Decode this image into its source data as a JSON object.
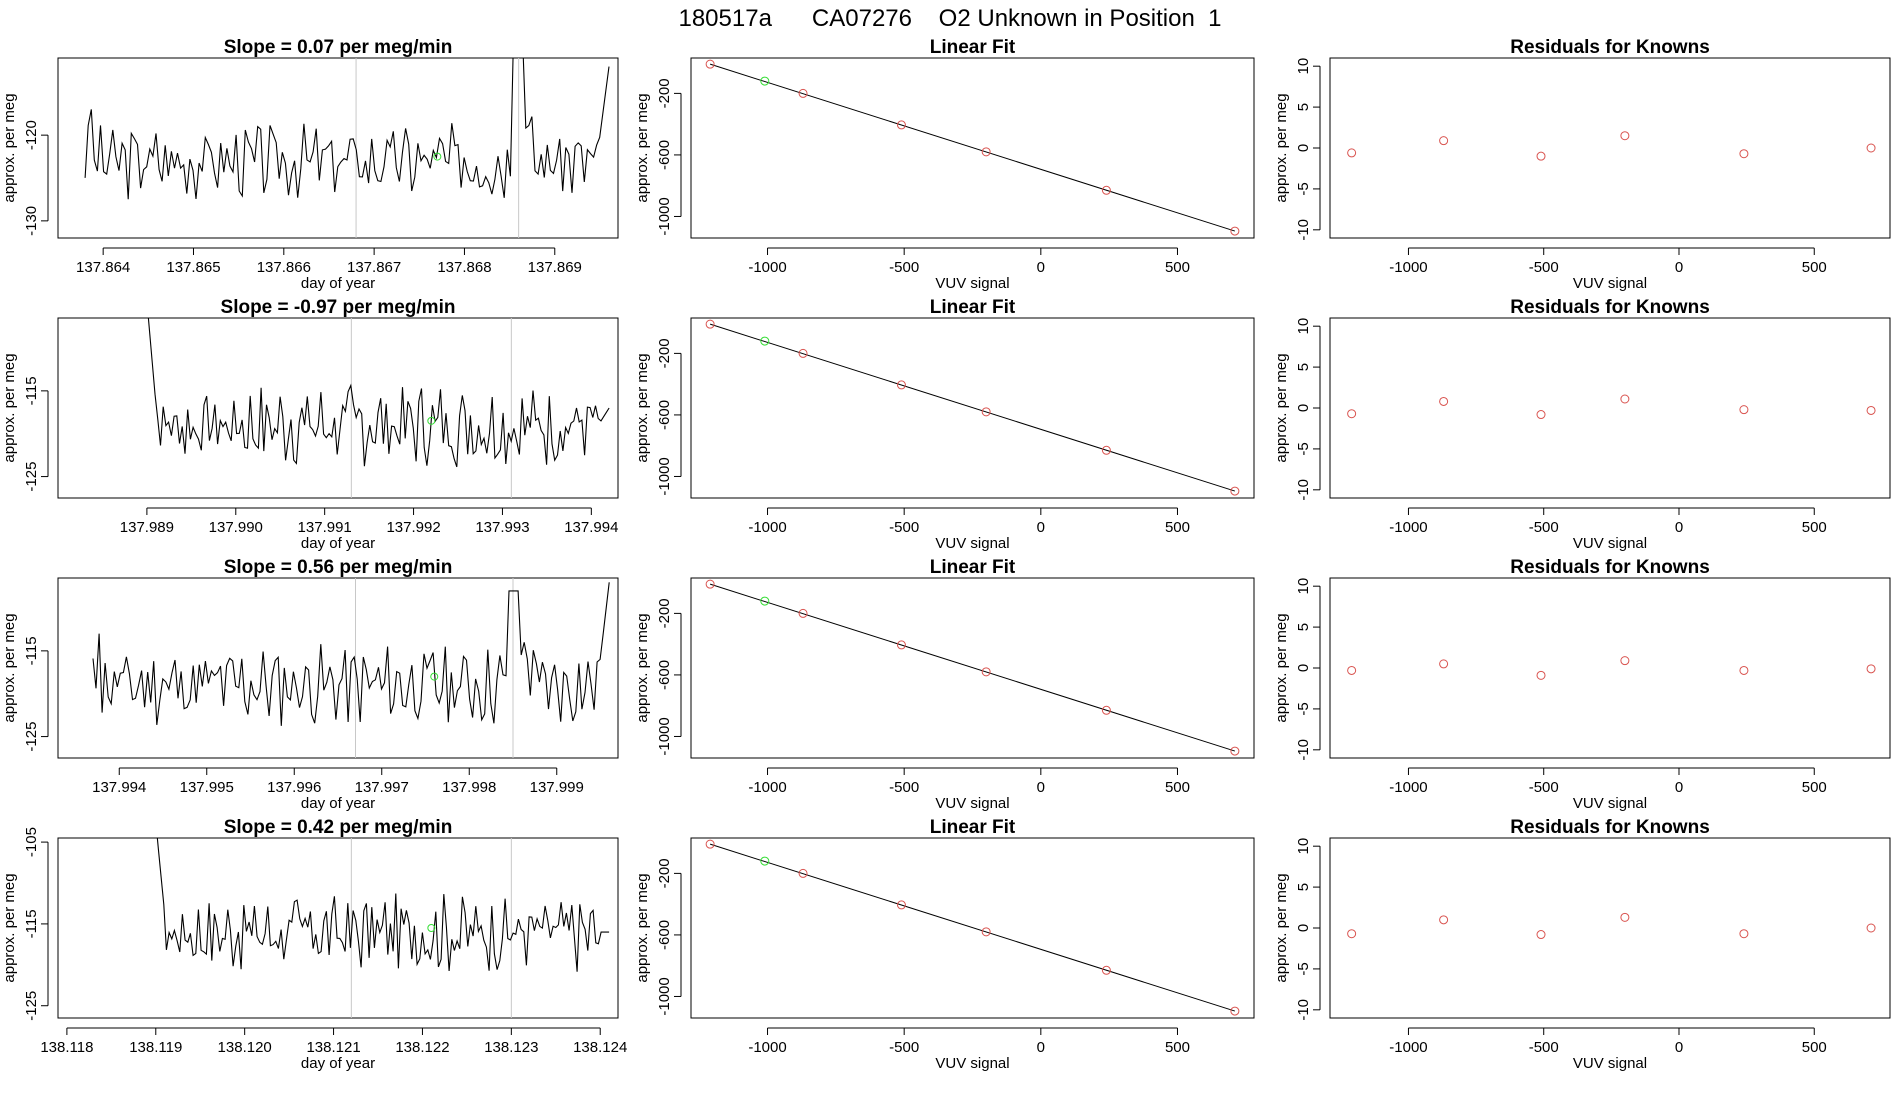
{
  "header": {
    "title": "180517a      CA07276    O2 Unknown in Position  1"
  },
  "colors": {
    "line": "#000000",
    "known": "#d9534f",
    "unknown": "#33dd33",
    "guide": "#c8c8c8",
    "frame": "#000000"
  },
  "chart_data": [
    {
      "row": 0,
      "type": "line",
      "title": "Slope =  0.07  per meg/min",
      "xlabel": "day of year",
      "ylabel": "approx. per meg",
      "xlim": [
        137.8635,
        137.8697
      ],
      "ylim": [
        -132,
        -111
      ],
      "xticks": [
        "137.864",
        "137.865",
        "137.866",
        "137.867",
        "137.868",
        "137.869"
      ],
      "xtick_values": [
        137.864,
        137.865,
        137.866,
        137.867,
        137.868,
        137.869
      ],
      "yticks": [
        "-130",
        "-120"
      ],
      "ytick_values": [
        -130,
        -120
      ],
      "start": 137.8638,
      "end": 137.8696,
      "baseline": -123,
      "noise": 2.2,
      "spike_x": 137.8686,
      "spike_y": -105,
      "end_rise_y": -112,
      "start_shape": "mid",
      "seed": 3,
      "guides": [
        137.8668,
        137.8686
      ],
      "unknown_point": {
        "x": 137.8677,
        "y": -122.5
      }
    },
    {
      "row": 1,
      "type": "line",
      "title": "Slope =  -0.97  per meg/min",
      "xlabel": "day of year",
      "ylabel": "approx. per meg",
      "xlim": [
        137.988,
        137.9943
      ],
      "ylim": [
        -127.5,
        -106.5
      ],
      "xticks": [
        "137.989",
        "137.990",
        "137.991",
        "137.992",
        "137.993",
        "137.994"
      ],
      "xtick_values": [
        137.989,
        137.99,
        137.991,
        137.992,
        137.993,
        137.994
      ],
      "yticks": [
        "-125",
        "-115"
      ],
      "ytick_values": [
        -125,
        -115
      ],
      "start": 137.989,
      "end": 137.9942,
      "baseline": -119,
      "noise": 2.5,
      "spike_x": null,
      "spike_y": null,
      "end_rise_y": -117,
      "start_shape": "high",
      "seed": 7,
      "guides": [
        137.9913,
        137.9931
      ],
      "unknown_point": {
        "x": 137.9922,
        "y": -118.5
      }
    },
    {
      "row": 2,
      "type": "line",
      "title": "Slope =  0.56  per meg/min",
      "xlabel": "day of year",
      "ylabel": "approx. per meg",
      "xlim": [
        137.9933,
        137.9997
      ],
      "ylim": [
        -127.5,
        -106.5
      ],
      "xticks": [
        "137.994",
        "137.995",
        "137.996",
        "137.997",
        "137.998",
        "137.999"
      ],
      "xtick_values": [
        137.994,
        137.995,
        137.996,
        137.997,
        137.998,
        137.999
      ],
      "yticks": [
        "-125",
        "-115"
      ],
      "ytick_values": [
        -125,
        -115
      ],
      "start": 137.9937,
      "end": 137.9996,
      "baseline": -119,
      "noise": 2.4,
      "spike_x": 137.9985,
      "spike_y": -104,
      "end_rise_y": -107,
      "start_shape": "mid",
      "seed": 11,
      "guides": [
        137.9967,
        137.9985
      ],
      "unknown_point": {
        "x": 137.9976,
        "y": -118
      }
    },
    {
      "row": 3,
      "type": "line",
      "title": "Slope =  0.42  per meg/min",
      "xlabel": "day of year",
      "ylabel": "approx. per meg",
      "xlim": [
        138.1179,
        138.1242
      ],
      "ylim": [
        -126.5,
        -104.5
      ],
      "xticks": [
        "138.118",
        "138.119",
        "138.120",
        "138.121",
        "138.122",
        "138.123",
        "138.124"
      ],
      "xtick_values": [
        138.118,
        138.119,
        138.12,
        138.121,
        138.122,
        138.123,
        138.124
      ],
      "yticks": [
        "-125",
        "-115",
        "-105"
      ],
      "ytick_values": [
        -125,
        -115,
        -105
      ],
      "start": 138.119,
      "end": 138.1241,
      "baseline": -116,
      "noise": 2.4,
      "spike_x": null,
      "spike_y": null,
      "end_rise_y": -116,
      "start_shape": "high",
      "seed": 17,
      "guides": [
        138.1212,
        138.123
      ],
      "unknown_point": {
        "x": 138.1221,
        "y": -115.5
      }
    },
    {
      "row": 0,
      "type": "scatter",
      "title": "Linear Fit",
      "xlabel": "VUV signal",
      "ylabel": "approx. per meg",
      "xlim": [
        -1280,
        780
      ],
      "ylim": [
        -1140,
        30
      ],
      "xticks": [
        "-1000",
        "-500",
        "0",
        "500"
      ],
      "xtick_values": [
        -1000,
        -500,
        0,
        500
      ],
      "yticks": [
        "-1000",
        "-600",
        "-200"
      ],
      "ytick_values": [
        -1000,
        -600,
        -200
      ],
      "fit_line": {
        "x": [
          -1210,
          710
        ],
        "y": [
          -10,
          -1095
        ]
      },
      "known_points": [
        {
          "x": -1210,
          "y": -10
        },
        {
          "x": -870,
          "y": -200
        },
        {
          "x": -510,
          "y": -405
        },
        {
          "x": -200,
          "y": -580
        },
        {
          "x": 240,
          "y": -830
        },
        {
          "x": 710,
          "y": -1095
        }
      ],
      "unknown_points": [
        {
          "x": -1010,
          "y": -120
        }
      ]
    },
    {
      "row": 1,
      "type": "scatter",
      "title": "Linear Fit",
      "xlabel": "VUV signal",
      "ylabel": "approx. per meg",
      "xlim": [
        -1280,
        780
      ],
      "ylim": [
        -1140,
        30
      ],
      "xticks": [
        "-1000",
        "-500",
        "0",
        "500"
      ],
      "xtick_values": [
        -1000,
        -500,
        0,
        500
      ],
      "yticks": [
        "-1000",
        "-600",
        "-200"
      ],
      "ytick_values": [
        -1000,
        -600,
        -200
      ],
      "fit_line": {
        "x": [
          -1210,
          710
        ],
        "y": [
          -10,
          -1095
        ]
      },
      "known_points": [
        {
          "x": -1210,
          "y": -10
        },
        {
          "x": -870,
          "y": -200
        },
        {
          "x": -510,
          "y": -405
        },
        {
          "x": -200,
          "y": -580
        },
        {
          "x": 240,
          "y": -830
        },
        {
          "x": 710,
          "y": -1095
        }
      ],
      "unknown_points": [
        {
          "x": -1010,
          "y": -120
        }
      ]
    },
    {
      "row": 2,
      "type": "scatter",
      "title": "Linear Fit",
      "xlabel": "VUV signal",
      "ylabel": "approx. per meg",
      "xlim": [
        -1280,
        780
      ],
      "ylim": [
        -1140,
        30
      ],
      "xticks": [
        "-1000",
        "-500",
        "0",
        "500"
      ],
      "xtick_values": [
        -1000,
        -500,
        0,
        500
      ],
      "yticks": [
        "-1000",
        "-600",
        "-200"
      ],
      "ytick_values": [
        -1000,
        -600,
        -200
      ],
      "fit_line": {
        "x": [
          -1210,
          710
        ],
        "y": [
          -10,
          -1095
        ]
      },
      "known_points": [
        {
          "x": -1210,
          "y": -10
        },
        {
          "x": -870,
          "y": -200
        },
        {
          "x": -510,
          "y": -405
        },
        {
          "x": -200,
          "y": -580
        },
        {
          "x": 240,
          "y": -830
        },
        {
          "x": 710,
          "y": -1095
        }
      ],
      "unknown_points": [
        {
          "x": -1010,
          "y": -120
        }
      ]
    },
    {
      "row": 3,
      "type": "scatter",
      "title": "Linear Fit",
      "xlabel": "VUV signal",
      "ylabel": "approx. per meg",
      "xlim": [
        -1280,
        780
      ],
      "ylim": [
        -1140,
        30
      ],
      "xticks": [
        "-1000",
        "-500",
        "0",
        "500"
      ],
      "xtick_values": [
        -1000,
        -500,
        0,
        500
      ],
      "yticks": [
        "-1000",
        "-600",
        "-200"
      ],
      "ytick_values": [
        -1000,
        -600,
        -200
      ],
      "fit_line": {
        "x": [
          -1210,
          710
        ],
        "y": [
          -10,
          -1095
        ]
      },
      "known_points": [
        {
          "x": -1210,
          "y": -10
        },
        {
          "x": -870,
          "y": -200
        },
        {
          "x": -510,
          "y": -405
        },
        {
          "x": -200,
          "y": -580
        },
        {
          "x": 240,
          "y": -830
        },
        {
          "x": 710,
          "y": -1095
        }
      ],
      "unknown_points": [
        {
          "x": -1010,
          "y": -120
        }
      ]
    },
    {
      "row": 0,
      "type": "scatter",
      "title": "Residuals for Knowns",
      "xlabel": "VUV signal",
      "ylabel": "approx. per meg",
      "xlim": [
        -1290,
        780
      ],
      "ylim": [
        -11,
        11
      ],
      "xticks": [
        "-1000",
        "-500",
        "0",
        "500"
      ],
      "xtick_values": [
        -1000,
        -500,
        0,
        500
      ],
      "yticks": [
        "-10",
        "-5",
        "0",
        "5",
        "10"
      ],
      "ytick_values": [
        -10,
        -5,
        0,
        5,
        10
      ],
      "known_points": [
        {
          "x": -1210,
          "y": -0.6
        },
        {
          "x": -870,
          "y": 0.9
        },
        {
          "x": -510,
          "y": -1.0
        },
        {
          "x": -200,
          "y": 1.5
        },
        {
          "x": 240,
          "y": -0.7
        },
        {
          "x": 710,
          "y": 0.0
        }
      ]
    },
    {
      "row": 1,
      "type": "scatter",
      "title": "Residuals for Knowns",
      "xlabel": "VUV signal",
      "ylabel": "approx. per meg",
      "xlim": [
        -1290,
        780
      ],
      "ylim": [
        -11,
        11
      ],
      "xticks": [
        "-1000",
        "-500",
        "0",
        "500"
      ],
      "xtick_values": [
        -1000,
        -500,
        0,
        500
      ],
      "yticks": [
        "-10",
        "-5",
        "0",
        "5",
        "10"
      ],
      "ytick_values": [
        -10,
        -5,
        0,
        5,
        10
      ],
      "known_points": [
        {
          "x": -1210,
          "y": -0.7
        },
        {
          "x": -870,
          "y": 0.8
        },
        {
          "x": -510,
          "y": -0.8
        },
        {
          "x": -200,
          "y": 1.1
        },
        {
          "x": 240,
          "y": -0.2
        },
        {
          "x": 710,
          "y": -0.3
        }
      ]
    },
    {
      "row": 2,
      "type": "scatter",
      "title": "Residuals for Knowns",
      "xlabel": "VUV signal",
      "ylabel": "approx. per meg",
      "xlim": [
        -1290,
        780
      ],
      "ylim": [
        -11,
        11
      ],
      "xticks": [
        "-1000",
        "-500",
        "0",
        "500"
      ],
      "xtick_values": [
        -1000,
        -500,
        0,
        500
      ],
      "yticks": [
        "-10",
        "-5",
        "0",
        "5",
        "10"
      ],
      "ytick_values": [
        -10,
        -5,
        0,
        5,
        10
      ],
      "known_points": [
        {
          "x": -1210,
          "y": -0.3
        },
        {
          "x": -870,
          "y": 0.5
        },
        {
          "x": -510,
          "y": -0.9
        },
        {
          "x": -200,
          "y": 0.9
        },
        {
          "x": 240,
          "y": -0.3
        },
        {
          "x": 710,
          "y": -0.1
        }
      ]
    },
    {
      "row": 3,
      "type": "scatter",
      "title": "Residuals for Knowns",
      "xlabel": "VUV signal",
      "ylabel": "approx. per meg",
      "xlim": [
        -1290,
        780
      ],
      "ylim": [
        -11,
        11
      ],
      "xticks": [
        "-1000",
        "-500",
        "0",
        "500"
      ],
      "xtick_values": [
        -1000,
        -500,
        0,
        500
      ],
      "yticks": [
        "-10",
        "-5",
        "0",
        "5",
        "10"
      ],
      "ytick_values": [
        -10,
        -5,
        0,
        5,
        10
      ],
      "known_points": [
        {
          "x": -1210,
          "y": -0.7
        },
        {
          "x": -870,
          "y": 1.0
        },
        {
          "x": -510,
          "y": -0.8
        },
        {
          "x": -200,
          "y": 1.3
        },
        {
          "x": 240,
          "y": -0.7
        },
        {
          "x": 710,
          "y": 0.0
        }
      ]
    }
  ]
}
